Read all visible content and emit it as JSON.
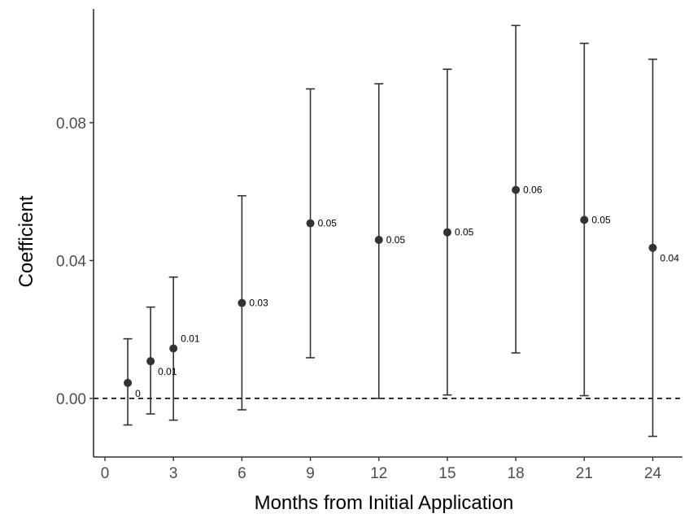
{
  "chart_data": {
    "type": "scatter",
    "title": "",
    "xlabel": "Months from Initial Application",
    "ylabel": "Coefficient",
    "xlim": [
      -0.5,
      25.3
    ],
    "ylim": [
      -0.017,
      0.113
    ],
    "x_ticks": [
      {
        "value": 0,
        "label": "0"
      },
      {
        "value": 3,
        "label": "3"
      },
      {
        "value": 6,
        "label": "6"
      },
      {
        "value": 9,
        "label": "9"
      },
      {
        "value": 12,
        "label": "12"
      },
      {
        "value": 15,
        "label": "15"
      },
      {
        "value": 18,
        "label": "18"
      },
      {
        "value": 21,
        "label": "21"
      },
      {
        "value": 24,
        "label": "24"
      }
    ],
    "y_ticks": [
      {
        "value": 0.0,
        "label": "0.00"
      },
      {
        "value": 0.04,
        "label": "0.04"
      },
      {
        "value": 0.08,
        "label": "0.08"
      }
    ],
    "reference_line": {
      "y": 0,
      "style": "dashed"
    },
    "grid": false,
    "legend": "none",
    "points": [
      {
        "x": 1,
        "y": 0.0045,
        "lower": -0.0077,
        "upper": 0.0173,
        "label": "0",
        "label_pos": "below-right"
      },
      {
        "x": 2,
        "y": 0.0108,
        "lower": -0.0045,
        "upper": 0.0265,
        "label": "0.01",
        "label_pos": "below-right"
      },
      {
        "x": 3,
        "y": 0.0145,
        "lower": -0.0063,
        "upper": 0.0352,
        "label": "0.01",
        "label_pos": "above-right"
      },
      {
        "x": 6,
        "y": 0.0277,
        "lower": -0.0033,
        "upper": 0.0588,
        "label": "0.03",
        "label_pos": "right"
      },
      {
        "x": 9,
        "y": 0.0508,
        "lower": 0.0118,
        "upper": 0.0898,
        "label": "0.05",
        "label_pos": "right"
      },
      {
        "x": 12,
        "y": 0.046,
        "lower": 0.0,
        "upper": 0.0913,
        "label": "0.05",
        "label_pos": "right"
      },
      {
        "x": 15,
        "y": 0.0482,
        "lower": 0.001,
        "upper": 0.0955,
        "label": "0.05",
        "label_pos": "right"
      },
      {
        "x": 18,
        "y": 0.0605,
        "lower": 0.0132,
        "upper": 0.1082,
        "label": "0.06",
        "label_pos": "right"
      },
      {
        "x": 21,
        "y": 0.0518,
        "lower": 0.0008,
        "upper": 0.103,
        "label": "0.05",
        "label_pos": "right"
      },
      {
        "x": 24,
        "y": 0.0437,
        "lower": -0.011,
        "upper": 0.0984,
        "label": "0.04",
        "label_pos": "below-right"
      }
    ],
    "colors": {
      "point": "#333333",
      "errorbar": "#333333",
      "axis": "#333333",
      "reference_line": "#000000"
    }
  }
}
